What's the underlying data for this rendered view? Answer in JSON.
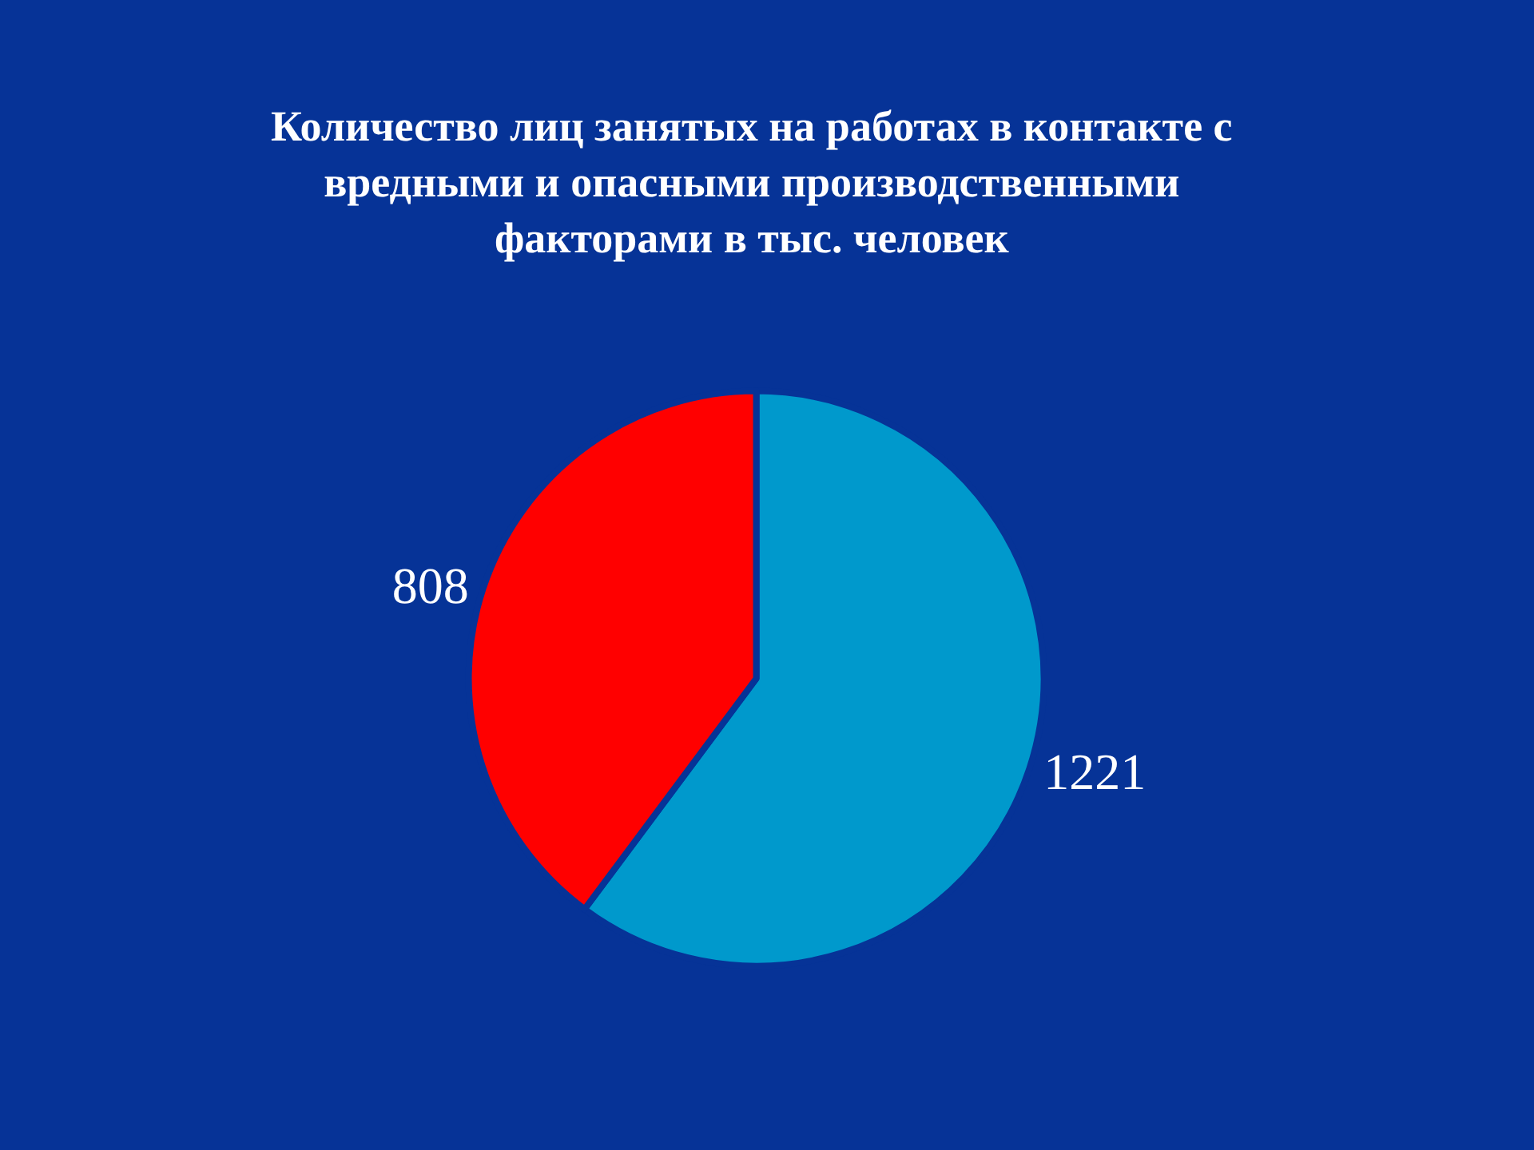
{
  "chart_data": {
    "type": "pie",
    "title": "Количество лиц занятых на работах в контакте с\nвредными и опасными производственными\nфакторами в тыс. человек",
    "categories": [
      null,
      null
    ],
    "values": [
      1221,
      808
    ],
    "colors": [
      "#0099cc",
      "#ff0000"
    ],
    "data_labels": true
  }
}
